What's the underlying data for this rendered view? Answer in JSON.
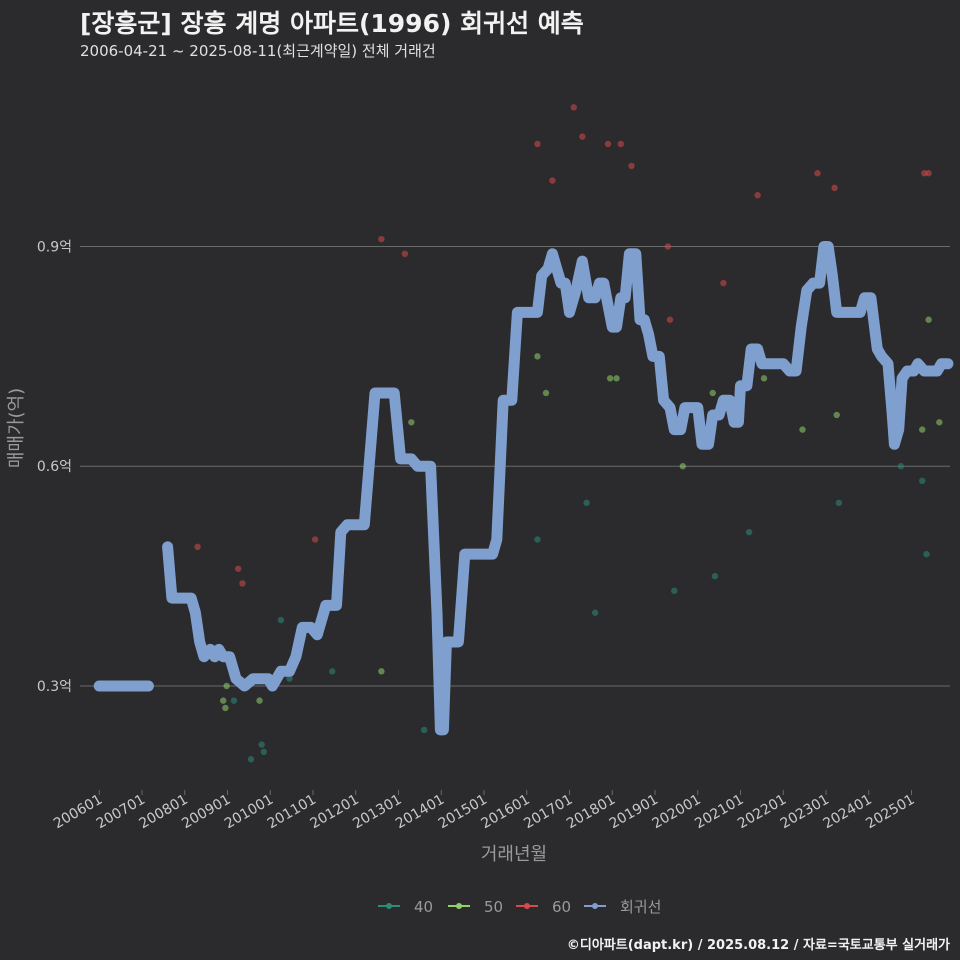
{
  "chart_data": {
    "type": "line+scatter",
    "title": "[장흥군] 장흥 계명 아파트(1996) 회귀선 예측",
    "subtitle": "2006-04-21 ~ 2025-08-11(최근계약일) 전체 거래건",
    "caption": "©디아파트(dapt.kr) / 2025.08.12 / 자료=국토교통부 실거래가",
    "xlabel": "거래년월",
    "ylabel": "매매가(억)",
    "x_unit": "decimal year",
    "xlim": [
      2005.55,
      2025.9
    ],
    "ylim": [
      0.158,
      1.13
    ],
    "y_ticks": [
      {
        "value": 0.3,
        "label": "0.3억"
      },
      {
        "value": 0.6,
        "label": "0.6억"
      },
      {
        "value": 0.9,
        "label": "0.9억"
      }
    ],
    "x_ticks": [
      {
        "value": 2006,
        "label": "200601"
      },
      {
        "value": 2007,
        "label": "200701"
      },
      {
        "value": 2008,
        "label": "200801"
      },
      {
        "value": 2009,
        "label": "200901"
      },
      {
        "value": 2010,
        "label": "201001"
      },
      {
        "value": 2011,
        "label": "201101"
      },
      {
        "value": 2012,
        "label": "201201"
      },
      {
        "value": 2013,
        "label": "201301"
      },
      {
        "value": 2014,
        "label": "201401"
      },
      {
        "value": 2015,
        "label": "201501"
      },
      {
        "value": 2016,
        "label": "201601"
      },
      {
        "value": 2017,
        "label": "201701"
      },
      {
        "value": 2018,
        "label": "201801"
      },
      {
        "value": 2019,
        "label": "201901"
      },
      {
        "value": 2020,
        "label": "202001"
      },
      {
        "value": 2021,
        "label": "202101"
      },
      {
        "value": 2022,
        "label": "202201"
      },
      {
        "value": 2023,
        "label": "202301"
      },
      {
        "value": 2024,
        "label": "202401"
      },
      {
        "value": 2025,
        "label": "202501"
      }
    ],
    "legend": [
      {
        "name": "40",
        "color": "#2e8b7a"
      },
      {
        "name": "50",
        "color": "#8fd16a"
      },
      {
        "name": "60",
        "color": "#d84b4b"
      },
      {
        "name": "회귀선",
        "color": "#7f9fcf"
      }
    ],
    "scatter_series": [
      {
        "name": "40",
        "color": "#2e8b7a",
        "points": [
          [
            2009.15,
            0.28
          ],
          [
            2009.55,
            0.2
          ],
          [
            2009.8,
            0.22
          ],
          [
            2009.85,
            0.21
          ],
          [
            2010.25,
            0.39
          ],
          [
            2010.45,
            0.31
          ],
          [
            2011.45,
            0.32
          ],
          [
            2013.6,
            0.24
          ],
          [
            2016.25,
            0.5
          ],
          [
            2017.4,
            0.55
          ],
          [
            2017.6,
            0.4
          ],
          [
            2019.45,
            0.43
          ],
          [
            2020.4,
            0.45
          ],
          [
            2021.2,
            0.51
          ],
          [
            2023.3,
            0.55
          ],
          [
            2024.75,
            0.6
          ],
          [
            2025.25,
            0.58
          ],
          [
            2025.35,
            0.48
          ]
        ]
      },
      {
        "name": "50",
        "color": "#8fd16a",
        "points": [
          [
            2008.9,
            0.28
          ],
          [
            2008.95,
            0.27
          ],
          [
            2008.98,
            0.3
          ],
          [
            2009.75,
            0.28
          ],
          [
            2012.6,
            0.32
          ],
          [
            2013.3,
            0.66
          ],
          [
            2016.25,
            0.75
          ],
          [
            2016.45,
            0.7
          ],
          [
            2017.95,
            0.72
          ],
          [
            2018.1,
            0.72
          ],
          [
            2019.65,
            0.6
          ],
          [
            2020.35,
            0.7
          ],
          [
            2021.45,
            0.74
          ],
          [
            2021.55,
            0.72
          ],
          [
            2022.45,
            0.65
          ],
          [
            2023.25,
            0.67
          ],
          [
            2025.25,
            0.65
          ],
          [
            2025.4,
            0.8
          ],
          [
            2025.65,
            0.66
          ]
        ]
      },
      {
        "name": "60",
        "color": "#d84b4b",
        "points": [
          [
            2008.3,
            0.49
          ],
          [
            2009.1,
            0.34
          ],
          [
            2009.25,
            0.46
          ],
          [
            2009.35,
            0.44
          ],
          [
            2011.05,
            0.5
          ],
          [
            2012.6,
            0.91
          ],
          [
            2013.15,
            0.89
          ],
          [
            2016.25,
            1.04
          ],
          [
            2016.6,
            0.99
          ],
          [
            2017.1,
            1.09
          ],
          [
            2017.3,
            1.05
          ],
          [
            2017.9,
            1.04
          ],
          [
            2018.2,
            1.04
          ],
          [
            2018.45,
            1.01
          ],
          [
            2019.3,
            0.9
          ],
          [
            2019.35,
            0.8
          ],
          [
            2020.6,
            0.85
          ],
          [
            2021.4,
            0.97
          ],
          [
            2022.8,
            1.0
          ],
          [
            2023.2,
            0.98
          ],
          [
            2025.3,
            1.0
          ],
          [
            2025.4,
            1.0
          ]
        ]
      }
    ],
    "regression_line": [
      [
        2006.0,
        0.3
      ],
      [
        2007.15,
        0.3
      ],
      null,
      [
        2007.6,
        0.49
      ],
      [
        2007.7,
        0.42
      ],
      [
        2008.0,
        0.42
      ],
      [
        2008.15,
        0.42
      ],
      [
        2008.25,
        0.4
      ],
      [
        2008.35,
        0.36
      ],
      [
        2008.45,
        0.34
      ],
      [
        2008.6,
        0.35
      ],
      [
        2008.7,
        0.34
      ],
      [
        2008.8,
        0.35
      ],
      [
        2008.9,
        0.34
      ],
      [
        2009.05,
        0.34
      ],
      [
        2009.2,
        0.31
      ],
      [
        2009.4,
        0.3
      ],
      [
        2009.6,
        0.31
      ],
      [
        2009.8,
        0.31
      ],
      [
        2009.95,
        0.31
      ],
      [
        2010.05,
        0.3
      ],
      [
        2010.25,
        0.32
      ],
      [
        2010.45,
        0.32
      ],
      [
        2010.6,
        0.34
      ],
      [
        2010.75,
        0.38
      ],
      [
        2010.95,
        0.38
      ],
      [
        2011.1,
        0.37
      ],
      [
        2011.3,
        0.41
      ],
      [
        2011.55,
        0.41
      ],
      [
        2011.65,
        0.51
      ],
      [
        2011.8,
        0.52
      ],
      [
        2012.2,
        0.52
      ],
      [
        2012.45,
        0.7
      ],
      [
        2012.9,
        0.7
      ],
      [
        2013.05,
        0.61
      ],
      [
        2013.3,
        0.61
      ],
      [
        2013.45,
        0.6
      ],
      [
        2013.75,
        0.6
      ],
      [
        2013.9,
        0.4
      ],
      [
        2013.98,
        0.24
      ],
      [
        2014.05,
        0.24
      ],
      [
        2014.12,
        0.36
      ],
      [
        2014.4,
        0.36
      ],
      [
        2014.55,
        0.48
      ],
      [
        2015.0,
        0.48
      ],
      [
        2015.2,
        0.48
      ],
      [
        2015.3,
        0.5
      ],
      [
        2015.45,
        0.69
      ],
      [
        2015.65,
        0.69
      ],
      [
        2015.78,
        0.81
      ],
      [
        2016.0,
        0.81
      ],
      [
        2016.25,
        0.81
      ],
      [
        2016.35,
        0.86
      ],
      [
        2016.5,
        0.87
      ],
      [
        2016.6,
        0.89
      ],
      [
        2016.7,
        0.87
      ],
      [
        2016.8,
        0.85
      ],
      [
        2016.9,
        0.85
      ],
      [
        2017.0,
        0.81
      ],
      [
        2017.15,
        0.84
      ],
      [
        2017.3,
        0.88
      ],
      [
        2017.45,
        0.83
      ],
      [
        2017.6,
        0.83
      ],
      [
        2017.7,
        0.85
      ],
      [
        2017.8,
        0.85
      ],
      [
        2017.9,
        0.82
      ],
      [
        2018.0,
        0.79
      ],
      [
        2018.1,
        0.79
      ],
      [
        2018.2,
        0.83
      ],
      [
        2018.3,
        0.83
      ],
      [
        2018.4,
        0.89
      ],
      [
        2018.55,
        0.89
      ],
      [
        2018.65,
        0.8
      ],
      [
        2018.75,
        0.8
      ],
      [
        2018.85,
        0.78
      ],
      [
        2018.95,
        0.75
      ],
      [
        2019.1,
        0.75
      ],
      [
        2019.2,
        0.69
      ],
      [
        2019.35,
        0.68
      ],
      [
        2019.45,
        0.65
      ],
      [
        2019.6,
        0.65
      ],
      [
        2019.7,
        0.68
      ],
      [
        2019.85,
        0.68
      ],
      [
        2020.0,
        0.68
      ],
      [
        2020.1,
        0.63
      ],
      [
        2020.25,
        0.63
      ],
      [
        2020.35,
        0.67
      ],
      [
        2020.5,
        0.67
      ],
      [
        2020.6,
        0.69
      ],
      [
        2020.75,
        0.69
      ],
      [
        2020.85,
        0.66
      ],
      [
        2020.95,
        0.66
      ],
      [
        2021.0,
        0.71
      ],
      [
        2021.15,
        0.71
      ],
      [
        2021.25,
        0.76
      ],
      [
        2021.4,
        0.76
      ],
      [
        2021.5,
        0.74
      ],
      [
        2021.7,
        0.74
      ],
      [
        2022.0,
        0.74
      ],
      [
        2022.15,
        0.73
      ],
      [
        2022.3,
        0.73
      ],
      [
        2022.42,
        0.79
      ],
      [
        2022.55,
        0.84
      ],
      [
        2022.7,
        0.85
      ],
      [
        2022.85,
        0.85
      ],
      [
        2022.95,
        0.9
      ],
      [
        2023.05,
        0.9
      ],
      [
        2023.15,
        0.86
      ],
      [
        2023.25,
        0.81
      ],
      [
        2023.4,
        0.81
      ],
      [
        2023.7,
        0.81
      ],
      [
        2023.8,
        0.81
      ],
      [
        2023.9,
        0.83
      ],
      [
        2024.05,
        0.83
      ],
      [
        2024.2,
        0.76
      ],
      [
        2024.3,
        0.75
      ],
      [
        2024.45,
        0.74
      ],
      [
        2024.55,
        0.67
      ],
      [
        2024.6,
        0.63
      ],
      [
        2024.7,
        0.65
      ],
      [
        2024.78,
        0.72
      ],
      [
        2024.9,
        0.73
      ],
      [
        2025.05,
        0.73
      ],
      [
        2025.15,
        0.74
      ],
      [
        2025.3,
        0.73
      ],
      [
        2025.45,
        0.73
      ],
      [
        2025.6,
        0.73
      ],
      [
        2025.7,
        0.74
      ],
      [
        2025.85,
        0.74
      ]
    ]
  }
}
